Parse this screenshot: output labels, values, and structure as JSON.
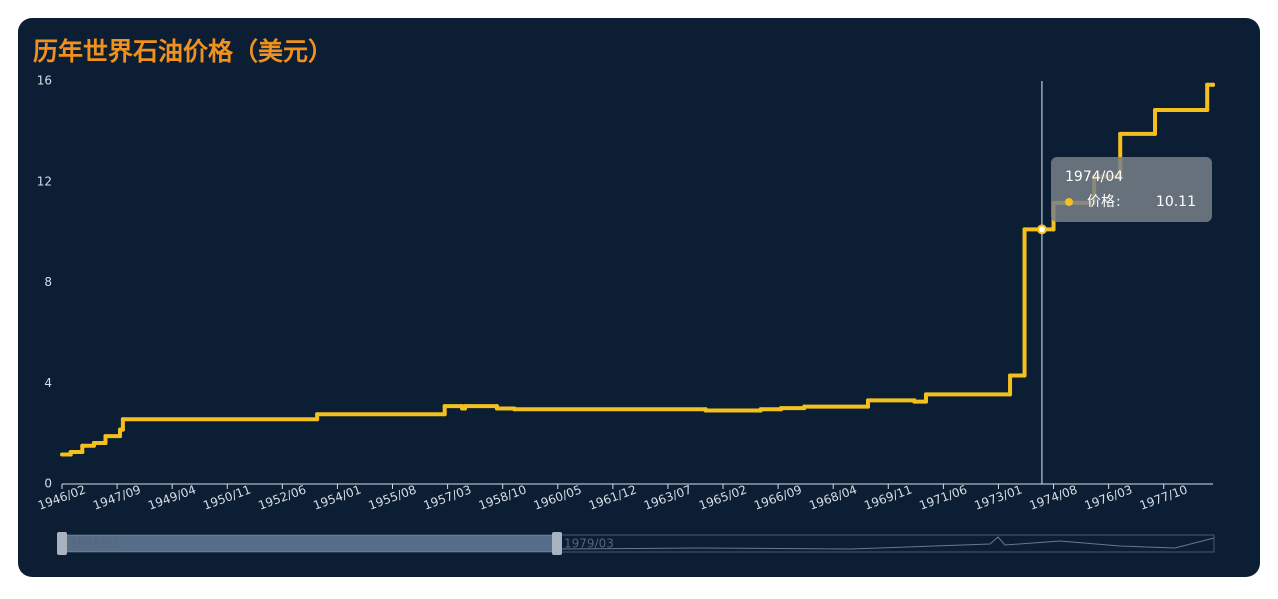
{
  "chart_data": {
    "type": "line",
    "title": "历年世界石油价格（美元）",
    "step": true,
    "x": [
      "1946/02",
      "1946/05",
      "1946/09",
      "1947/01",
      "1947/05",
      "1947/10",
      "1947/11",
      "1953/06",
      "1957/02",
      "1957/08",
      "1957/09",
      "1958/08",
      "1959/02",
      "1964/08",
      "1966/03",
      "1966/10",
      "1967/06",
      "1969/04",
      "1970/08",
      "1970/12",
      "1973/05",
      "1973/10",
      "1974/04",
      "1974/08",
      "1975/10",
      "1976/07",
      "1977/07",
      "1979/01",
      "1979/03"
    ],
    "series": [
      {
        "name": "价格",
        "color": "#f4c01e",
        "values": [
          1.17,
          1.27,
          1.52,
          1.63,
          1.9,
          2.16,
          2.57,
          2.77,
          3.09,
          3.0,
          3.09,
          3.0,
          2.97,
          2.92,
          2.97,
          3.01,
          3.07,
          3.32,
          3.27,
          3.56,
          4.31,
          10.11,
          10.11,
          11.16,
          12.21,
          13.9,
          14.85,
          15.85,
          15.85
        ]
      }
    ],
    "xlim": [
      "1946/02",
      "1979/03"
    ],
    "xticks": [
      "1946/02",
      "1947/09",
      "1949/04",
      "1950/11",
      "1952/06",
      "1954/01",
      "1955/08",
      "1957/03",
      "1958/10",
      "1960/05",
      "1961/12",
      "1963/07",
      "1965/02",
      "1966/09",
      "1968/04",
      "1969/11",
      "1971/06",
      "1973/01",
      "1974/08",
      "1976/03",
      "1977/10"
    ],
    "ylim": [
      0,
      16
    ],
    "yticks": [
      0,
      4,
      8,
      12,
      16
    ],
    "tooltip_index": 22
  }
}
